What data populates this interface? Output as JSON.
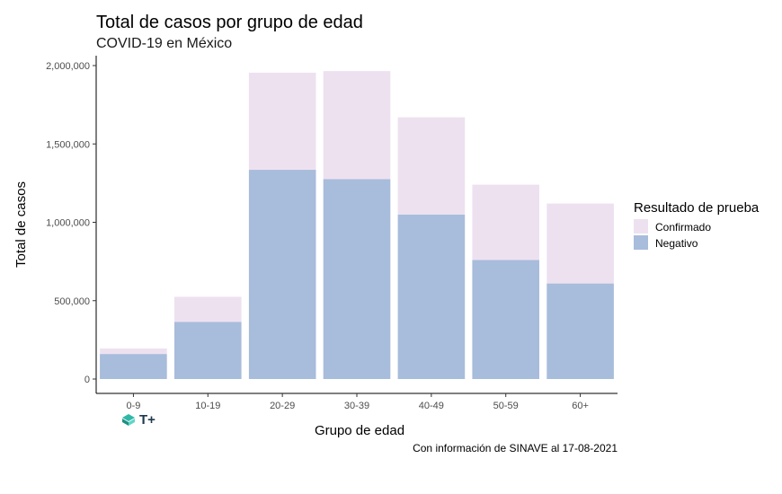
{
  "title": "Total de casos por grupo de edad",
  "subtitle": "COVID-19 en México",
  "caption": "Con información de SINAVE al 17-08-2021",
  "logo": {
    "text": "T+",
    "icon": "tplus-logo-icon"
  },
  "colors": {
    "Confirmado": "#ede1f0",
    "Negativo": "#a8bcdb"
  },
  "chart_data": {
    "type": "bar",
    "stacked": true,
    "categories": [
      "0-9",
      "10-19",
      "20-29",
      "30-39",
      "40-49",
      "50-59",
      "60+"
    ],
    "series": [
      {
        "name": "Negativo",
        "values": [
          160000,
          365000,
          1335000,
          1275000,
          1050000,
          760000,
          610000
        ]
      },
      {
        "name": "Confirmado",
        "values": [
          35000,
          160000,
          620000,
          690000,
          620000,
          480000,
          510000
        ]
      }
    ],
    "xlabel": "Grupo de edad",
    "ylabel": "Total de casos",
    "ylim": [
      0,
      2000000
    ],
    "yticks": [
      0,
      500000,
      1000000,
      1500000,
      2000000
    ],
    "ytick_labels": [
      "0",
      "500,000",
      "1,000,000",
      "1,500,000",
      "2,000,000"
    ],
    "legend": {
      "title": "Resultado de prueba",
      "entries": [
        "Confirmado",
        "Negativo"
      ],
      "position": "right"
    },
    "grid": false
  }
}
